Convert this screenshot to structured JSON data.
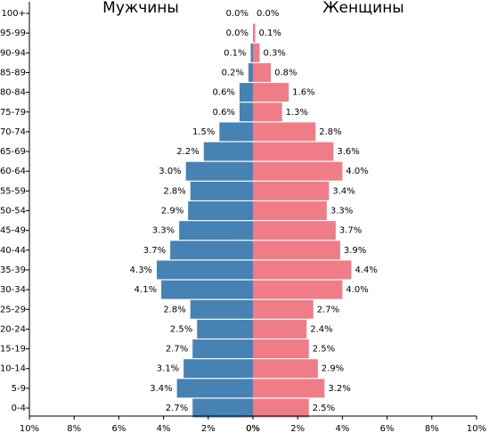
{
  "chart_data": {
    "type": "pyramid",
    "categories": [
      "0-4",
      "5-9",
      "10-14",
      "15-19",
      "20-24",
      "25-29",
      "30-34",
      "35-39",
      "40-44",
      "45-49",
      "50-54",
      "55-59",
      "60-64",
      "65-69",
      "70-74",
      "75-79",
      "80-84",
      "85-89",
      "90-94",
      "95-99",
      "100+"
    ],
    "series": [
      {
        "name": "Мужчины",
        "color": "#4682b4",
        "side": "left",
        "values": [
          2.7,
          3.4,
          3.1,
          2.7,
          2.5,
          2.8,
          4.1,
          4.3,
          3.7,
          3.3,
          2.9,
          2.8,
          3.0,
          2.2,
          1.5,
          0.6,
          0.6,
          0.2,
          0.1,
          0.0,
          0.0
        ],
        "value_labels": [
          "2.7%",
          "3.4%",
          "3.1%",
          "2.7%",
          "2.5%",
          "2.8%",
          "4.1%",
          "4.3%",
          "3.7%",
          "3.3%",
          "2.9%",
          "2.8%",
          "3.0%",
          "2.2%",
          "1.5%",
          "0.6%",
          "0.6%",
          "0.2%",
          "0.1%",
          "0.0%",
          "0.0%"
        ]
      },
      {
        "name": "Женщины",
        "color": "#f07c88",
        "side": "right",
        "values": [
          2.5,
          3.2,
          2.9,
          2.5,
          2.4,
          2.7,
          4.0,
          4.4,
          3.9,
          3.7,
          3.3,
          3.4,
          4.0,
          3.6,
          2.8,
          1.3,
          1.6,
          0.8,
          0.3,
          0.1,
          0.0
        ],
        "value_labels": [
          "2.5%",
          "3.2%",
          "2.9%",
          "2.5%",
          "2.4%",
          "2.7%",
          "4.0%",
          "4.4%",
          "3.9%",
          "3.7%",
          "3.3%",
          "3.4%",
          "4.0%",
          "3.6%",
          "2.8%",
          "1.3%",
          "1.6%",
          "0.8%",
          "0.3%",
          "0.1%",
          "0.0%"
        ]
      }
    ],
    "left_xlim": [
      10,
      0
    ],
    "left_xticks": [
      {
        "value": 10,
        "label": "10%"
      },
      {
        "value": 8,
        "label": "8%"
      },
      {
        "value": 6,
        "label": "6%"
      },
      {
        "value": 4,
        "label": "4%"
      },
      {
        "value": 2,
        "label": "2%"
      },
      {
        "value": 0,
        "label": "0%"
      }
    ],
    "right_xlim": [
      0,
      10
    ],
    "right_xticks": [
      {
        "value": 0,
        "label": "0%"
      },
      {
        "value": 2,
        "label": "2%"
      },
      {
        "value": 4,
        "label": "4%"
      },
      {
        "value": 6,
        "label": "6%"
      },
      {
        "value": 8,
        "label": "8%"
      },
      {
        "value": 10,
        "label": "10%"
      }
    ]
  }
}
